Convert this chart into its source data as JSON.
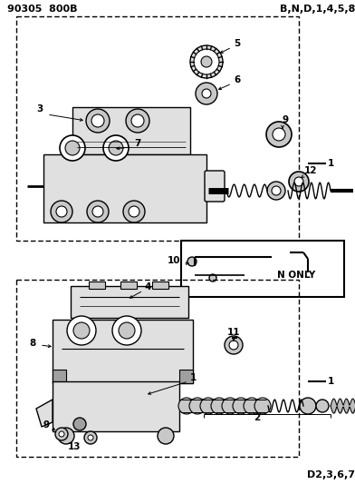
{
  "title_top_left": "90305  800B",
  "label_top_right": "B,N,D,1,4,5,8",
  "label_bottom_right": "D2,3,6,7",
  "label_n_only": "N ONLY",
  "bg": "#ffffff",
  "lc": "#000000",
  "gray1": "#c8c8c8",
  "gray2": "#a0a0a0",
  "gray3": "#e0e0e0"
}
